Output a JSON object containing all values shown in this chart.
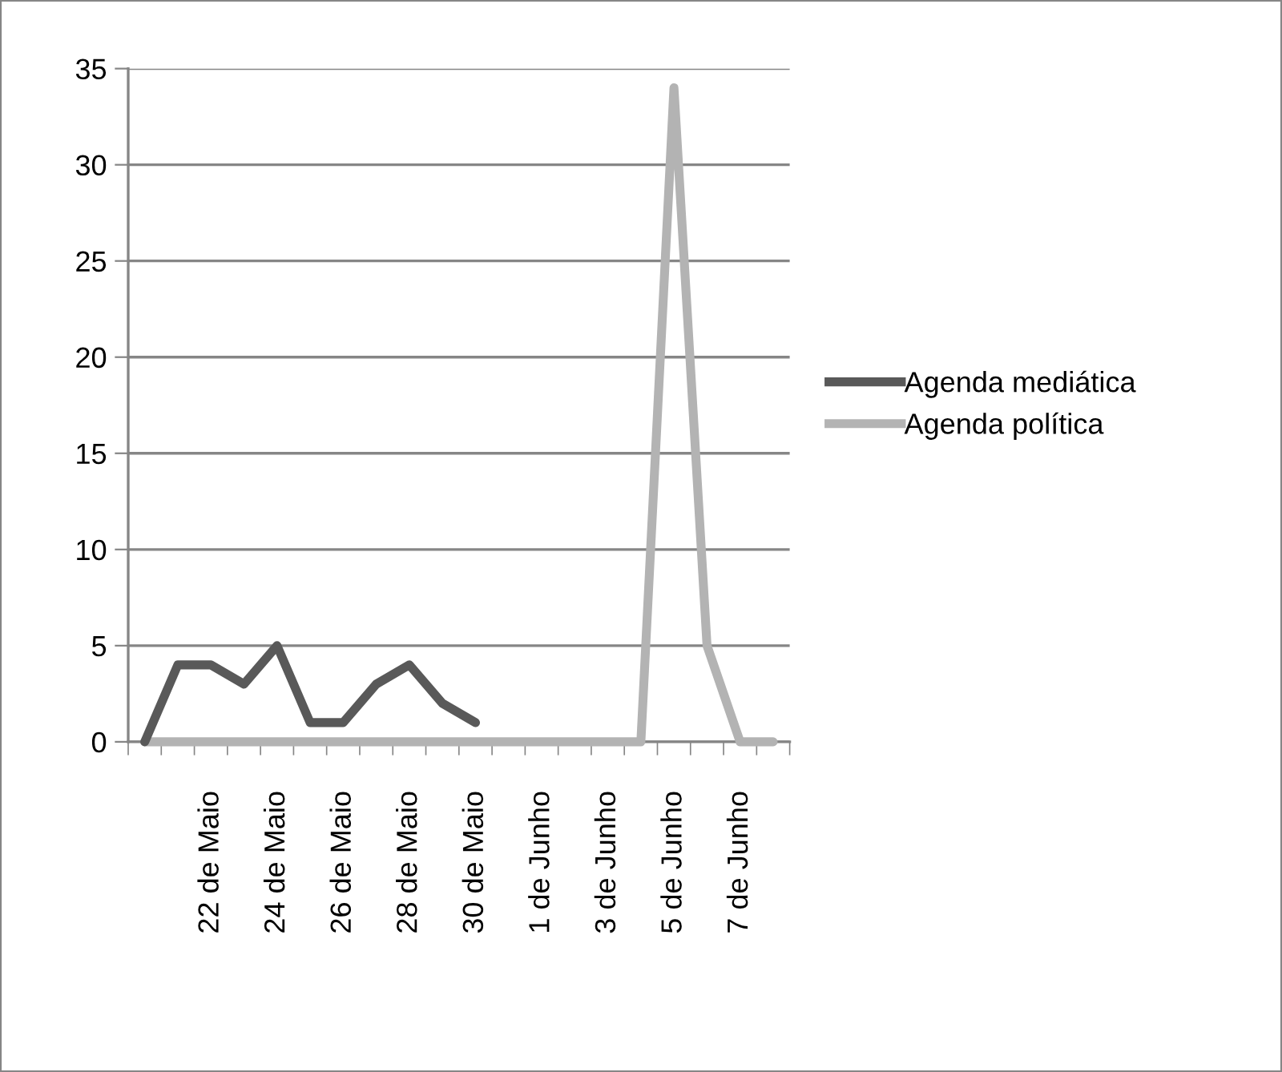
{
  "chart_data": {
    "type": "line",
    "categories": [
      null,
      null,
      "22 de Maio",
      null,
      "24 de Maio",
      null,
      "26 de Maio",
      null,
      "28 de Maio",
      null,
      "30 de Maio",
      null,
      "1 de Junho",
      null,
      "3 de Junho",
      null,
      "5 de Junho",
      null,
      "7 de Junho",
      null
    ],
    "series": [
      {
        "name": "Agenda mediática",
        "color": "#595959",
        "values": [
          0,
          4,
          4,
          3,
          5,
          1,
          1,
          3,
          4,
          2,
          1,
          null,
          null,
          null,
          null,
          null,
          null,
          null,
          null,
          null
        ]
      },
      {
        "name": "Agenda política",
        "color": "#b3b3b3",
        "values": [
          0,
          0,
          0,
          0,
          0,
          0,
          0,
          0,
          0,
          0,
          0,
          0,
          0,
          0,
          0,
          0,
          34,
          5,
          0,
          0
        ]
      }
    ],
    "ylim": [
      0,
      35
    ],
    "yticks": [
      0,
      5,
      10,
      15,
      20,
      25,
      30,
      35
    ],
    "grid": "y",
    "legend": "right",
    "marker": "none",
    "line_style": "solid"
  }
}
